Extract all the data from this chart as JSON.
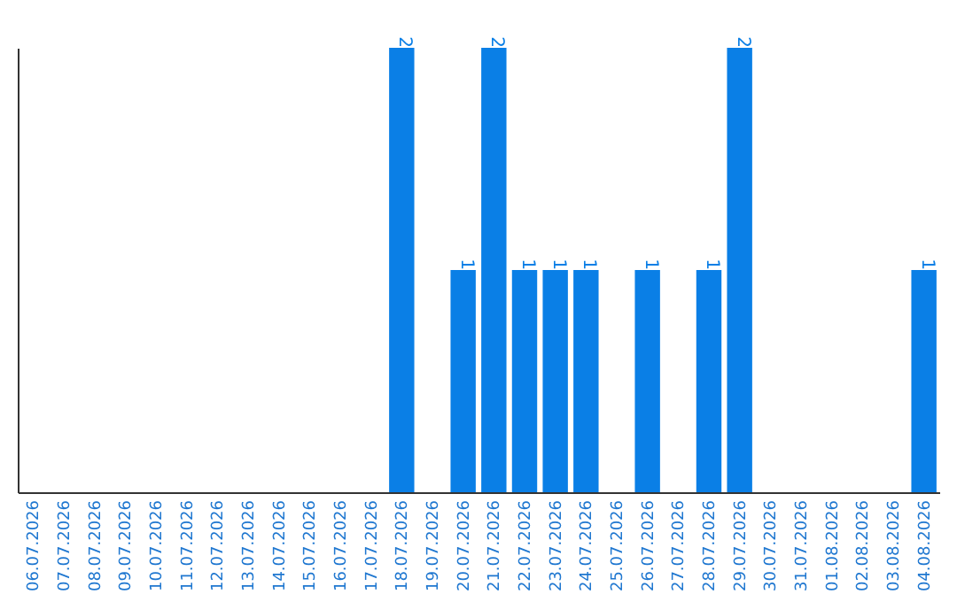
{
  "chart_data": {
    "type": "bar",
    "categories": [
      "06.07.2026",
      "07.07.2026",
      "08.07.2026",
      "09.07.2026",
      "10.07.2026",
      "11.07.2026",
      "12.07.2026",
      "13.07.2026",
      "14.07.2026",
      "15.07.2026",
      "16.07.2026",
      "17.07.2026",
      "18.07.2026",
      "19.07.2026",
      "20.07.2026",
      "21.07.2026",
      "22.07.2026",
      "23.07.2026",
      "24.07.2026",
      "25.07.2026",
      "26.07.2026",
      "27.07.2026",
      "28.07.2026",
      "29.07.2026",
      "30.07.2026",
      "31.07.2026",
      "01.08.2026",
      "02.08.2026",
      "03.08.2026",
      "04.08.2026"
    ],
    "values": [
      null,
      null,
      null,
      null,
      null,
      null,
      null,
      null,
      null,
      null,
      null,
      null,
      2,
      null,
      1,
      2,
      1,
      1,
      1,
      null,
      1,
      null,
      1,
      2,
      null,
      null,
      null,
      null,
      null,
      1
    ],
    "value_labels": [
      null,
      null,
      null,
      null,
      null,
      null,
      null,
      null,
      null,
      null,
      null,
      null,
      "2",
      null,
      "1",
      "2",
      "1",
      "1",
      "1",
      null,
      "1",
      null,
      "1",
      "2",
      null,
      null,
      null,
      null,
      null,
      "1"
    ],
    "color": "#0a7fe6",
    "grid": false
  }
}
